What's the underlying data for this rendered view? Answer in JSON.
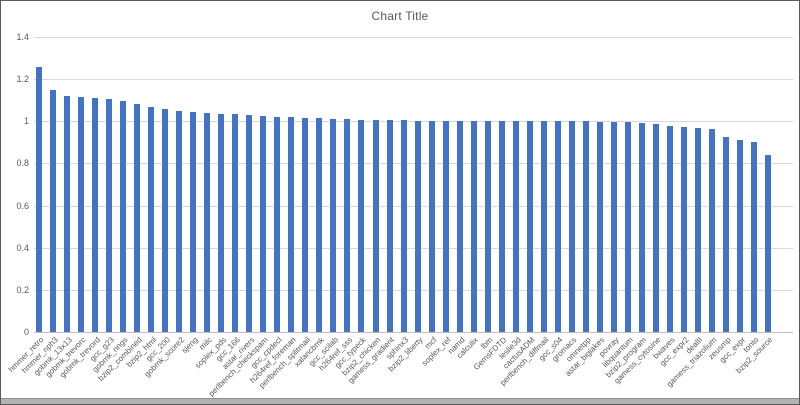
{
  "chart_data": {
    "type": "bar",
    "title": "Chart Title",
    "categories": [
      "hmmer_retro",
      "hmmer_nph3",
      "gobmk_13x13",
      "gobmk_trevorc",
      "gobmk_trevord",
      "gcc_g23",
      "gobmk_nngs",
      "bzip2_combined",
      "bzip2_html",
      "gcc_200",
      "gobmk_score2",
      "sjeng",
      "milc",
      "soplex_pds",
      "gcc_166",
      "astar_rivers",
      "perlbench_checkspam",
      "gcc_cpdecl",
      "h264ref_foreman",
      "perlbench_splitmail",
      "xalancbmk",
      "gcc_scilab",
      "h264ref_sss",
      "gcc_typeck",
      "bzip2_chicken",
      "gamess_gradient",
      "sphinx3",
      "bzip2_liberty",
      "mcf",
      "soplex_ref",
      "namd",
      "calculix",
      "lbm",
      "GemsFDTD",
      "leslie3d",
      "cactusADM",
      "perlbench_diffmail",
      "gcc_s04",
      "gromacs",
      "omnetpp",
      "astar_biglakes",
      "povray",
      "libquantum",
      "bzip2_program",
      "gamess_cytosine",
      "bwaves",
      "gcc_expr2",
      "dealII",
      "gamess_triazolium",
      "zeusmp",
      "gcc_expr",
      "tonto",
      "bzip2_source"
    ],
    "values": [
      1.26,
      1.15,
      1.12,
      1.115,
      1.11,
      1.105,
      1.095,
      1.08,
      1.07,
      1.06,
      1.05,
      1.045,
      1.04,
      1.035,
      1.035,
      1.03,
      1.025,
      1.02,
      1.02,
      1.015,
      1.015,
      1.012,
      1.01,
      1.008,
      1.005,
      1.005,
      1.005,
      1.003,
      1.002,
      1.002,
      1.0,
      1.0,
      1.0,
      1.0,
      1.0,
      1.0,
      1.0,
      1.0,
      1.0,
      1.0,
      0.998,
      0.997,
      0.995,
      0.99,
      0.985,
      0.98,
      0.975,
      0.97,
      0.965,
      0.925,
      0.91,
      0.9,
      0.84
    ],
    "xlabel": "",
    "ylabel": "",
    "ylim": [
      0,
      1.4
    ],
    "yticks": [
      0,
      0.2,
      0.4,
      0.6,
      0.8,
      1,
      1.2,
      1.4
    ],
    "ytick_labels": [
      "0",
      "0.2",
      "0.4",
      "0.6",
      "0.8",
      "1",
      "1.2",
      "1.4"
    ],
    "grid": "horizontal",
    "legend": "none",
    "colors": {
      "bar": "#4472C4",
      "gridline": "#D9D9D9",
      "axis_line": "#BFBFBF",
      "title_text": "#595959",
      "axis_text": "#595959"
    }
  }
}
